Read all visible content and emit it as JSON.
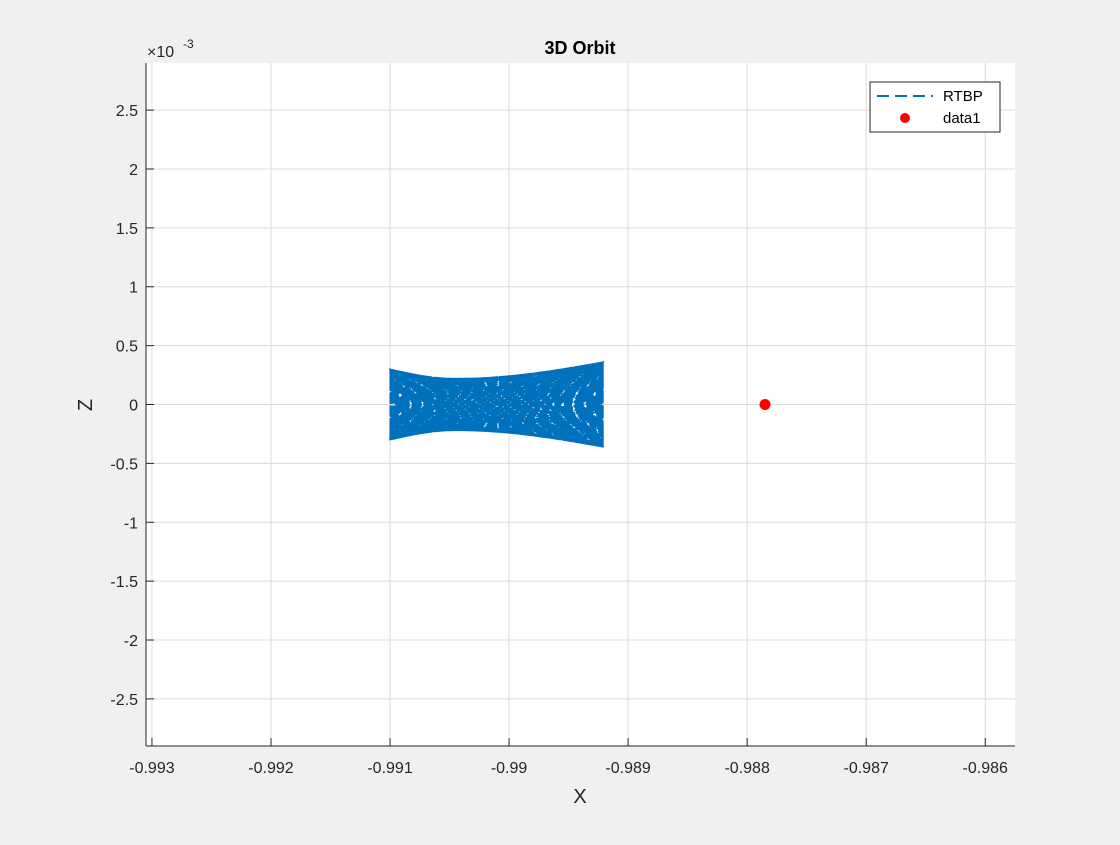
{
  "chart_data": {
    "type": "line",
    "title": "3D Orbit",
    "xlabel": "X",
    "ylabel": "Z",
    "xlim": [
      -0.99305,
      -0.98575
    ],
    "ylim": [
      -0.0029,
      0.0029
    ],
    "y_exponent_label": "×10",
    "y_exponent_power": "-3",
    "x_ticks": [
      -0.993,
      -0.992,
      -0.991,
      -0.99,
      -0.989,
      -0.988,
      -0.987,
      -0.986
    ],
    "x_tick_labels": [
      "-0.993",
      "-0.992",
      "-0.991",
      "-0.99",
      "-0.989",
      "-0.988",
      "-0.987",
      "-0.986"
    ],
    "y_ticks": [
      -0.0025,
      -0.002,
      -0.0015,
      -0.001,
      -0.0005,
      0,
      0.0005,
      0.001,
      0.0015,
      0.002,
      0.0025
    ],
    "y_tick_labels": [
      "-2.5",
      "-2",
      "-1.5",
      "-1",
      "-0.5",
      "0",
      "0.5",
      "1",
      "1.5",
      "2",
      "2.5"
    ],
    "grid": true,
    "legend_position": "top-right",
    "series": [
      {
        "name": "RTBP",
        "style": "dashed-line",
        "color": "#0072bd",
        "x_range": [
          -0.991,
          -0.98921
        ],
        "z_envelope_left": [
          -0.0003,
          0.0003
        ],
        "z_envelope_right": [
          -0.00036,
          0.00036
        ],
        "z_envelope_min_inner": 0.00022,
        "z_envelope_min_x": -0.99045
      },
      {
        "name": "data1",
        "style": "marker",
        "color": "#ff0000",
        "points": [
          [
            -0.98785,
            0
          ]
        ]
      }
    ]
  }
}
